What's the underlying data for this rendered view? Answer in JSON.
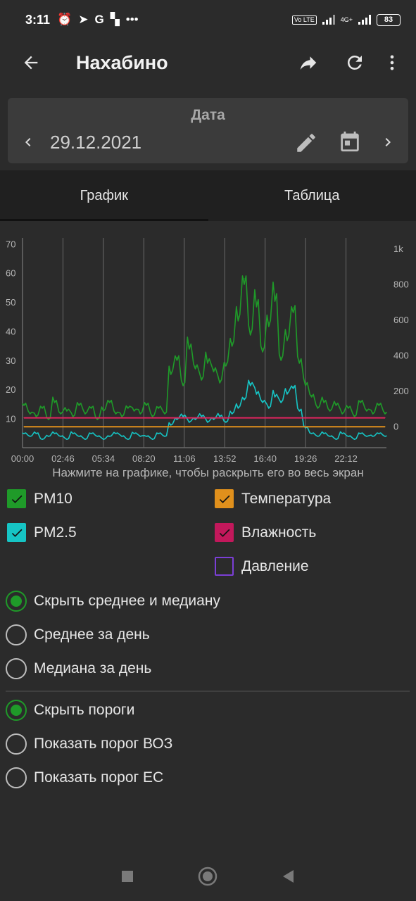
{
  "status_bar": {
    "time": "3:11",
    "network_label": "4G+",
    "volte_label": "Vo LTE",
    "battery": "83"
  },
  "app_bar": {
    "title": "Нахабино",
    "icons": [
      "back-arrow-icon",
      "share-icon",
      "refresh-icon",
      "more-vert-icon"
    ]
  },
  "date_picker": {
    "label": "Дата",
    "value": "29.12.2021"
  },
  "tabs": [
    {
      "label": "График",
      "active": true
    },
    {
      "label": "Таблица",
      "active": false
    }
  ],
  "chart_hint": "Нажмите на графике, чтобы раскрыть его во весь экран",
  "chart_data": {
    "type": "line",
    "x_ticks": [
      "00:00",
      "02:46",
      "05:34",
      "08:20",
      "11:06",
      "13:52",
      "16:40",
      "19:26",
      "22:12"
    ],
    "left_axis": {
      "ticks": [
        "70",
        "60",
        "50",
        "40",
        "30",
        "20",
        "10"
      ],
      "range": [
        0,
        72
      ]
    },
    "right_axis": {
      "ticks": [
        "1k",
        "800",
        "600",
        "400",
        "200",
        "0"
      ],
      "range": [
        -120,
        1060
      ]
    },
    "series": [
      {
        "name": "PM10",
        "color": "#1f9a29",
        "values": [
          15,
          12,
          11,
          14,
          10,
          16,
          12,
          13,
          11,
          15,
          12,
          14,
          10,
          13,
          16,
          12,
          11,
          14,
          13,
          12,
          15,
          11,
          14,
          12,
          26,
          31,
          22,
          35,
          28,
          24,
          30,
          27,
          23,
          29,
          36,
          45,
          58,
          40,
          50,
          34,
          43,
          52,
          31,
          38,
          48,
          30,
          22,
          18,
          14,
          16,
          13,
          15,
          12,
          14,
          11,
          16,
          13,
          12,
          15,
          12
        ]
      },
      {
        "name": "PM2.5",
        "color": "#16c4c4",
        "values": [
          5,
          4,
          5,
          3,
          4,
          5,
          4,
          3,
          5,
          4,
          3,
          5,
          4,
          3,
          4,
          5,
          4,
          3,
          5,
          4,
          4,
          3,
          5,
          4,
          8,
          10,
          11,
          9,
          10,
          11,
          9,
          10,
          11,
          9,
          12,
          14,
          17,
          22,
          19,
          16,
          14,
          18,
          16,
          19,
          21,
          13,
          7,
          5,
          4,
          5,
          4,
          3,
          5,
          4,
          3,
          5,
          4,
          4,
          5,
          4
        ]
      },
      {
        "name": "Влажность",
        "color": "#e0245e",
        "values": [
          48,
          48,
          48,
          48,
          48,
          48,
          48,
          48,
          48,
          48,
          48,
          48,
          48,
          48,
          48,
          48,
          48,
          48,
          48,
          48,
          48,
          48,
          48,
          48,
          48,
          48,
          48,
          48,
          48,
          48,
          48,
          48,
          48,
          48,
          48,
          48,
          48,
          48,
          48,
          48,
          48,
          48,
          48,
          48,
          48,
          48,
          48,
          48,
          48,
          48,
          48,
          48,
          48,
          48,
          48,
          48,
          48,
          48,
          48,
          48
        ]
      },
      {
        "name": "Температура",
        "color": "#e0901c",
        "values": [
          -2,
          -2,
          -2,
          -2,
          -2,
          -2,
          -2,
          -2,
          -2,
          -2,
          -2,
          -2,
          -2,
          -2,
          -2,
          -2,
          -2,
          -2,
          -2,
          -2,
          -2,
          -2,
          -2,
          -2,
          -2,
          -2,
          -2,
          -2,
          -2,
          -2,
          -2,
          -2,
          -2,
          -2,
          -2,
          -2,
          -2,
          -2,
          -2,
          -2,
          -2,
          -2,
          -2,
          -2,
          -2,
          -2,
          -2,
          -2,
          -2,
          -2,
          -2,
          -2,
          -2,
          -2,
          -2,
          -2,
          -2,
          -2,
          -2,
          -2
        ]
      }
    ]
  },
  "legend": [
    {
      "label": "PM10",
      "checked": true,
      "color": "#1f9a29"
    },
    {
      "label": "Температура",
      "checked": true,
      "color": "#e0901c"
    },
    {
      "label": "PM2.5",
      "checked": true,
      "color": "#16c4c4"
    },
    {
      "label": "Влажность",
      "checked": true,
      "color": "#c2185b"
    },
    {
      "label": "Давление",
      "checked": false,
      "color": "#7b3fd6"
    }
  ],
  "stats_options": [
    {
      "label": "Скрыть среднее и медиану",
      "selected": true
    },
    {
      "label": "Среднее за день",
      "selected": false
    },
    {
      "label": "Медиана за день",
      "selected": false
    }
  ],
  "threshold_options": [
    {
      "label": "Скрыть пороги",
      "selected": true
    },
    {
      "label": "Показать порог ВОЗ",
      "selected": false
    },
    {
      "label": "Показать порог ЕС",
      "selected": false
    }
  ]
}
